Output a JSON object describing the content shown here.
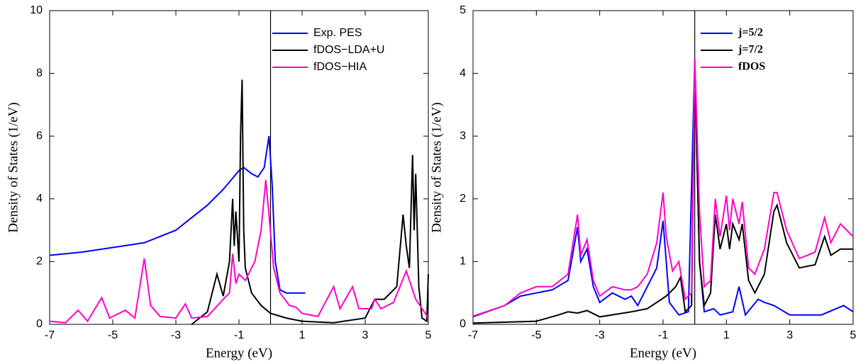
{
  "chart_data": [
    {
      "type": "line",
      "xlabel": "Energy (eV)",
      "ylabel": "Density of States (1/eV)",
      "xlim": [
        -7,
        5
      ],
      "ylim": [
        0,
        10
      ],
      "xticks": [
        -7,
        -5,
        -3,
        -1,
        1,
        3,
        5
      ],
      "yticks": [
        0,
        2,
        4,
        6,
        8,
        10
      ],
      "vline": 0,
      "legend": "upper right",
      "series": [
        {
          "name": "Exp. PES",
          "color": "#0000ff",
          "x": [
            -7,
            -6,
            -5,
            -4,
            -3,
            -2,
            -1.5,
            -1,
            -0.85,
            -0.6,
            -0.4,
            -0.2,
            -0.05,
            0.05,
            0.15,
            0.3,
            0.5,
            1.1
          ],
          "values": [
            2.2,
            2.3,
            2.45,
            2.6,
            3.0,
            3.8,
            4.3,
            4.9,
            5.0,
            4.8,
            4.7,
            5.0,
            6.0,
            4.5,
            2.0,
            1.1,
            1.0,
            1.0
          ]
        },
        {
          "name": "fDOS−LDA+U",
          "color": "#000000",
          "x": [
            -2.5,
            -2,
            -1.7,
            -1.5,
            -1.3,
            -1.2,
            -1.15,
            -1.1,
            -1.0,
            -0.95,
            -0.9,
            -0.85,
            -0.8,
            -0.6,
            -0.3,
            0,
            0.5,
            1,
            2,
            3,
            3.3,
            3.6,
            4,
            4.2,
            4.3,
            4.4,
            4.5,
            4.55,
            4.6,
            4.7,
            4.8,
            4.95,
            5
          ],
          "values": [
            0,
            0.4,
            1.6,
            0.9,
            2.0,
            4.0,
            2.5,
            3.6,
            2.0,
            6.0,
            7.8,
            3.0,
            1.8,
            1.0,
            0.6,
            0.35,
            0.2,
            0.1,
            0.05,
            0.2,
            0.8,
            0.8,
            1.2,
            3.5,
            2.5,
            1.8,
            5.4,
            3.0,
            4.8,
            1.2,
            0.2,
            0.1,
            1.6
          ]
        },
        {
          "name": "fDOS−HIA",
          "color": "#ff00cc",
          "x": [
            -7,
            -6.5,
            -6.1,
            -5.8,
            -5.35,
            -5.1,
            -4.6,
            -4.3,
            -4.0,
            -3.8,
            -3.5,
            -3,
            -2.7,
            -2.5,
            -2,
            -1.5,
            -1.3,
            -1.2,
            -1.1,
            -1.0,
            -0.8,
            -0.5,
            -0.3,
            -0.15,
            -0.05,
            0.1,
            0.3,
            0.6,
            0.8,
            1,
            1.5,
            2.0,
            2.2,
            2.6,
            2.8,
            3.2,
            3.3,
            3.5,
            3.9,
            4.3,
            4.6,
            5
          ],
          "values": [
            0.1,
            0.05,
            0.45,
            0.1,
            0.85,
            0.2,
            0.45,
            0.2,
            2.1,
            0.6,
            0.25,
            0.2,
            0.65,
            0.2,
            0.25,
            0.8,
            1.0,
            2.25,
            1.3,
            1.6,
            1.4,
            2.0,
            3.0,
            4.6,
            3.5,
            1.8,
            1.0,
            0.6,
            0.55,
            0.35,
            0.25,
            1.2,
            0.5,
            1.2,
            0.5,
            0.5,
            0.8,
            0.5,
            0.7,
            1.7,
            0.8,
            0.2
          ]
        }
      ]
    },
    {
      "type": "line",
      "xlabel": "Energy (eV)",
      "ylabel": "Density of States (1/eV)",
      "xlim": [
        -7,
        5
      ],
      "ylim": [
        0,
        5
      ],
      "xticks": [
        -7,
        -5,
        -3,
        -1,
        1,
        3,
        5
      ],
      "yticks": [
        0,
        1,
        2,
        3,
        4,
        5
      ],
      "vline": 0,
      "legend": "upper right",
      "series": [
        {
          "name": "j=5/2",
          "color": "#0000ff",
          "x": [
            -7,
            -6,
            -5.5,
            -5,
            -4.5,
            -4,
            -3.7,
            -3.6,
            -3.4,
            -3.2,
            -3,
            -2.6,
            -2.2,
            -2,
            -1.8,
            -1.5,
            -1.2,
            -1.0,
            -0.9,
            -0.8,
            -0.5,
            -0.2,
            0,
            0.15,
            0.3,
            0.6,
            0.8,
            1.2,
            1.4,
            1.6,
            2,
            2.2,
            2.5,
            3,
            4,
            4.7,
            5
          ],
          "values": [
            0.12,
            0.3,
            0.45,
            0.5,
            0.55,
            0.7,
            1.55,
            1.0,
            1.2,
            0.6,
            0.35,
            0.5,
            0.4,
            0.45,
            0.3,
            0.6,
            0.9,
            1.65,
            1.0,
            0.35,
            0.15,
            0.2,
            4.2,
            1.0,
            0.2,
            0.25,
            0.15,
            0.2,
            0.6,
            0.15,
            0.4,
            0.35,
            0.3,
            0.15,
            0.15,
            0.3,
            0.2
          ]
        },
        {
          "name": "j=7/2",
          "color": "#000000",
          "x": [
            -7,
            -5,
            -4.3,
            -4,
            -3.7,
            -3.4,
            -3,
            -2,
            -1.5,
            -1.2,
            -0.9,
            -0.6,
            -0.45,
            -0.3,
            -0.1,
            0,
            0.15,
            0.3,
            0.5,
            0.65,
            0.8,
            1.0,
            1.1,
            1.2,
            1.4,
            1.5,
            1.7,
            1.9,
            2.2,
            2.5,
            2.6,
            2.9,
            3.3,
            3.8,
            4.1,
            4.3,
            4.6,
            5
          ],
          "values": [
            0.02,
            0.05,
            0.15,
            0.2,
            0.18,
            0.22,
            0.12,
            0.2,
            0.25,
            0.35,
            0.45,
            0.6,
            0.75,
            0.2,
            0.3,
            4.1,
            1.0,
            0.3,
            0.5,
            1.75,
            1.2,
            1.6,
            1.2,
            1.6,
            1.35,
            1.6,
            0.7,
            0.5,
            0.8,
            1.8,
            1.9,
            1.3,
            0.9,
            0.95,
            1.4,
            1.1,
            1.2,
            1.2
          ]
        },
        {
          "name": "fDOS",
          "color": "#ff00cc",
          "x": [
            -7,
            -6,
            -5.5,
            -5,
            -4.5,
            -4,
            -3.7,
            -3.6,
            -3.4,
            -3.2,
            -3,
            -2.6,
            -2.2,
            -2,
            -1.8,
            -1.5,
            -1.2,
            -1.0,
            -0.9,
            -0.7,
            -0.5,
            -0.3,
            -0.1,
            0,
            0.15,
            0.3,
            0.5,
            0.65,
            0.8,
            1.0,
            1.1,
            1.2,
            1.4,
            1.5,
            1.7,
            1.9,
            2.2,
            2.5,
            2.6,
            2.9,
            3.3,
            3.8,
            4.1,
            4.3,
            4.6,
            5
          ],
          "values": [
            0.13,
            0.3,
            0.5,
            0.6,
            0.6,
            0.8,
            1.75,
            1.1,
            1.35,
            0.7,
            0.45,
            0.6,
            0.55,
            0.55,
            0.6,
            0.8,
            1.3,
            2.1,
            1.4,
            0.85,
            1.0,
            0.4,
            0.5,
            4.25,
            1.8,
            0.6,
            0.7,
            2.0,
            1.4,
            2.05,
            1.5,
            2.0,
            1.6,
            1.95,
            0.9,
            0.8,
            1.2,
            2.1,
            2.1,
            1.5,
            1.05,
            1.15,
            1.7,
            1.3,
            1.6,
            1.4
          ]
        }
      ]
    }
  ]
}
